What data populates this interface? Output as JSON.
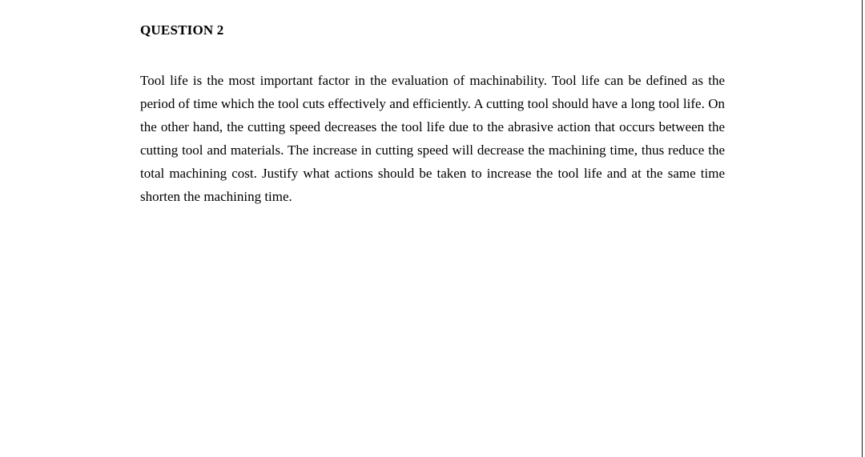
{
  "document": {
    "heading": "QUESTION 2",
    "paragraph": "Tool life is the most important factor in the evaluation of machinability. Tool life can be defined as the period of time which the tool cuts effectively and efficiently. A cutting tool should have a long tool life. On the other hand, the cutting speed decreases the tool life due to the abrasive action that occurs between the cutting tool and materials. The increase in cutting speed will decrease the machining time, thus reduce the total machining cost. Justify what actions should be taken to increase the tool life and at the same time shorten the machining time.",
    "font_family": "Times New Roman",
    "heading_fontsize": 17,
    "body_fontsize": 17,
    "line_height": 29,
    "text_color": "#000000",
    "background_color": "#ffffff"
  }
}
